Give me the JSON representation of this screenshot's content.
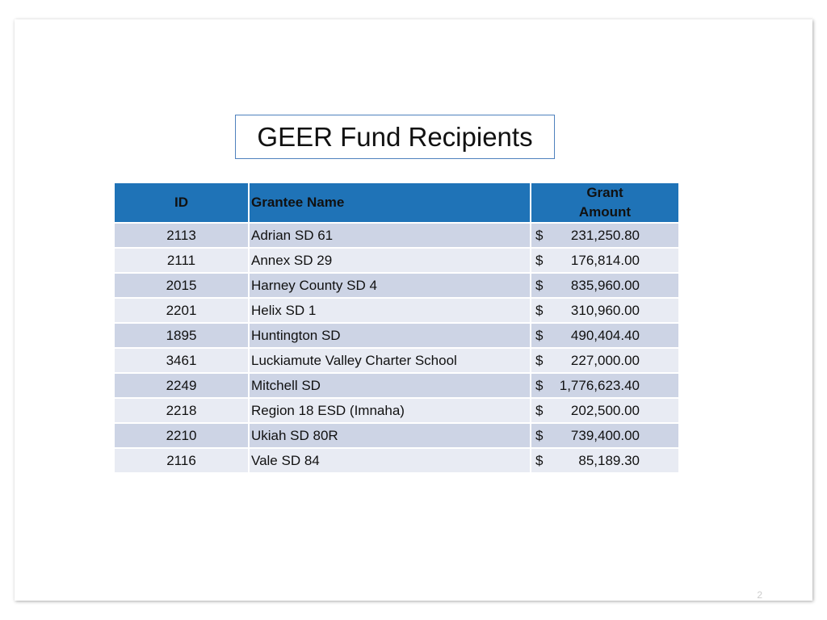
{
  "title": "GEER Fund Recipients",
  "table": {
    "headers": {
      "id": "ID",
      "name": "Grantee Name",
      "amount_line1": "Grant",
      "amount_line2": "Amount"
    },
    "rows": [
      {
        "id": "2113",
        "name": "Adrian SD 61",
        "currency": "$",
        "amount": "231,250.80"
      },
      {
        "id": "2111",
        "name": "Annex SD 29",
        "currency": "$",
        "amount": "176,814.00"
      },
      {
        "id": "2015",
        "name": "Harney County SD 4",
        "currency": "$",
        "amount": "835,960.00"
      },
      {
        "id": "2201",
        "name": "Helix SD 1",
        "currency": "$",
        "amount": "310,960.00"
      },
      {
        "id": "1895",
        "name": "Huntington SD",
        "currency": "$",
        "amount": "490,404.40"
      },
      {
        "id": "3461",
        "name": "Luckiamute Valley Charter School",
        "currency": "$",
        "amount": "227,000.00"
      },
      {
        "id": "2249",
        "name": "Mitchell SD",
        "currency": "$",
        "amount": "1,776,623.40"
      },
      {
        "id": "2218",
        "name": "Region 18 ESD (Imnaha)",
        "currency": "$",
        "amount": "202,500.00"
      },
      {
        "id": "2210",
        "name": "Ukiah SD 80R",
        "currency": "$",
        "amount": "739,400.00"
      },
      {
        "id": "2116",
        "name": "Vale SD 84",
        "currency": "$",
        "amount": "85,189.30"
      }
    ]
  },
  "page_number": "2",
  "colors": {
    "header_bg": "#1f73b7",
    "row_odd": "#cdd4e5",
    "row_even": "#e8ebf3",
    "title_border": "#4f81bd"
  }
}
